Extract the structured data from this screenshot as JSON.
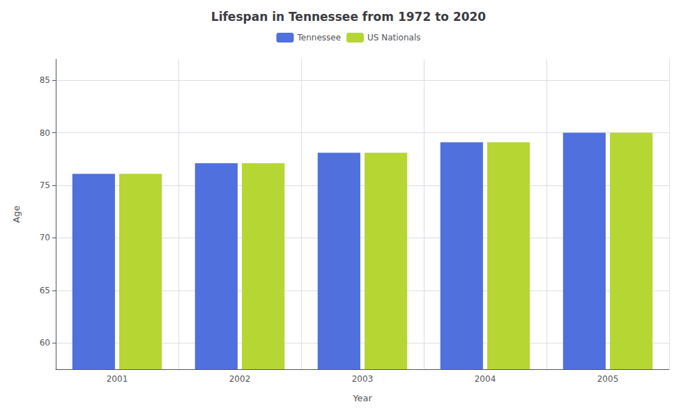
{
  "chart_data": {
    "type": "bar",
    "title": "Lifespan in Tennessee from 1972 to 2020",
    "xlabel": "Year",
    "ylabel": "Age",
    "categories": [
      "2001",
      "2002",
      "2003",
      "2004",
      "2005"
    ],
    "series": [
      {
        "name": "Tennessee",
        "values": [
          76.1,
          77.1,
          78.1,
          79.1,
          80.0
        ]
      },
      {
        "name": "US Nationals",
        "values": [
          76.1,
          77.1,
          78.1,
          79.1,
          80.0
        ]
      }
    ],
    "ylim": [
      57.5,
      87
    ],
    "yticks": [
      60,
      65,
      70,
      75,
      80,
      85
    ],
    "grid": true,
    "legend": "top"
  }
}
